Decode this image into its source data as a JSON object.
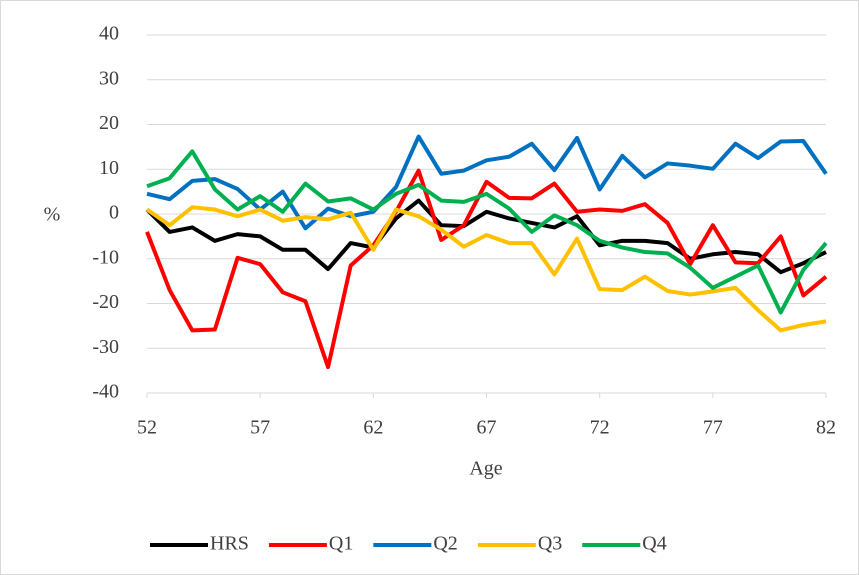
{
  "chart_data": {
    "type": "line",
    "xlabel": "Age",
    "ylabel": "%",
    "x": [
      52,
      53,
      54,
      55,
      56,
      57,
      58,
      59,
      60,
      61,
      62,
      63,
      64,
      65,
      66,
      67,
      68,
      69,
      70,
      71,
      72,
      73,
      74,
      75,
      76,
      77,
      78,
      79,
      80,
      81,
      82
    ],
    "xlim": [
      52,
      82
    ],
    "xticks": [
      52,
      57,
      62,
      67,
      72,
      77,
      82
    ],
    "ylim": [
      -40,
      40
    ],
    "yticks": [
      -40,
      -30,
      -20,
      -10,
      0,
      10,
      20,
      30,
      40
    ],
    "grid": true,
    "legend": "bottom",
    "series": [
      {
        "name": "HRS",
        "color": "#000000",
        "values": [
          1,
          -4,
          -3,
          -6,
          -4.5,
          -5,
          -8,
          -8,
          -12.3,
          -6.5,
          -7.5,
          -1,
          3,
          -2.5,
          -2.7,
          0.5,
          -1,
          -2,
          -3,
          -0.5,
          -7,
          -6,
          -6,
          -6.5,
          -10,
          -9,
          -8.5,
          -9,
          -13,
          -11,
          -8.5
        ]
      },
      {
        "name": "Q1",
        "color": "#ff0000",
        "values": [
          -4,
          -17,
          -26,
          -25.8,
          -9.8,
          -11.2,
          -17.5,
          -19.5,
          -34.2,
          -11.5,
          -7,
          0.5,
          9.7,
          -5.8,
          -2.5,
          7.2,
          3.6,
          3.5,
          6.8,
          0.5,
          1,
          0.7,
          2.2,
          -2,
          -11.2,
          -2.5,
          -10.8,
          -11,
          -5,
          -18.2,
          -14
        ]
      },
      {
        "name": "Q2",
        "color": "#0070c0",
        "values": [
          4.5,
          3.3,
          7.4,
          7.8,
          5.6,
          1,
          5,
          -3.2,
          1.2,
          -0.5,
          0.5,
          6,
          17.3,
          9,
          9.7,
          12,
          12.8,
          15.7,
          9.8,
          17,
          5.5,
          13,
          8.2,
          11.3,
          10.8,
          10.1,
          15.7,
          12.5,
          16.2,
          16.3,
          9
        ]
      },
      {
        "name": "Q3",
        "color": "#ffc000",
        "values": [
          1,
          -2.5,
          1.5,
          1,
          -0.5,
          1,
          -1.5,
          -0.7,
          -1.2,
          0.3,
          -8,
          1,
          -0.5,
          -3.5,
          -7.3,
          -4.7,
          -6.5,
          -6.5,
          -13.5,
          -5.5,
          -16.8,
          -17,
          -14,
          -17.2,
          -18,
          -17.3,
          -16.5,
          -21.5,
          -26,
          -24.8,
          -24
        ]
      },
      {
        "name": "Q4",
        "color": "#00b050",
        "values": [
          6.2,
          8,
          14,
          5.5,
          1,
          4,
          0.5,
          6.8,
          2.8,
          3.5,
          1,
          4.5,
          6.5,
          3,
          2.7,
          4.5,
          1.2,
          -4,
          -0.3,
          -2.5,
          -6,
          -7.5,
          -8.5,
          -8.8,
          -12,
          -16.5,
          -14,
          -11.5,
          -22,
          -12.5,
          -6.5
        ]
      }
    ]
  }
}
